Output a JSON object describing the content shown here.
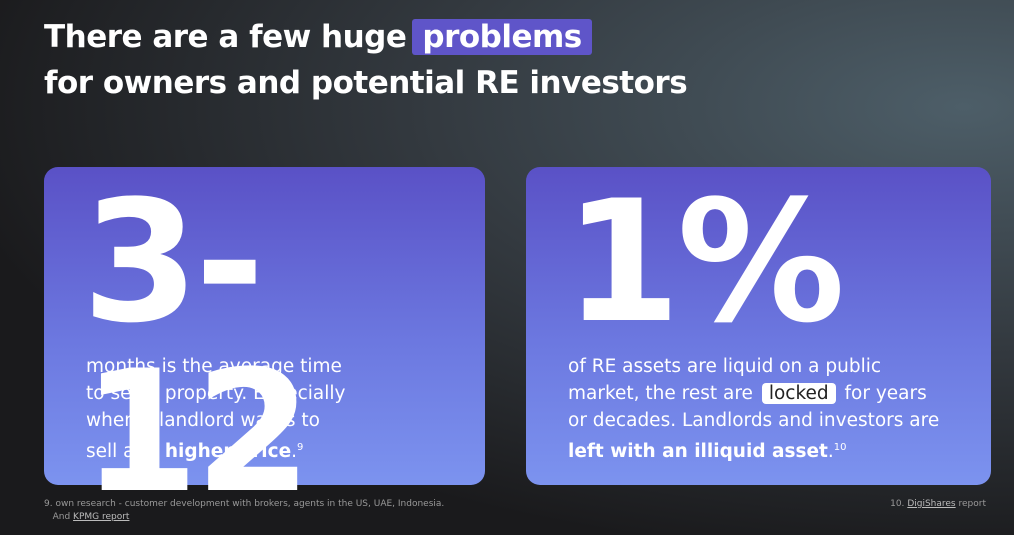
{
  "title": {
    "line1": "There are a few huge",
    "highlight": "problems",
    "line2": "for owners and potential RE investors"
  },
  "cards": [
    {
      "big": "3-12",
      "parts": [
        "months is the average time to sell a property. Especially when a landlord wants to sell at a ",
        "higher price",
        "."
      ],
      "footnote_ref": "9"
    },
    {
      "big": "1%",
      "parts": [
        "of RE assets are liquid on a public market, the rest are",
        "locked",
        "for years or decades. Landlords and investors are",
        "left with an illiquid asset",
        "."
      ],
      "footnote_ref": "10"
    }
  ],
  "footnotes": {
    "left": {
      "text": "9. own research - customer development with brokers, agents in the US, UAE, Indonesia.",
      "and": "And",
      "link": "KPMG report"
    },
    "right": {
      "number": "10.",
      "link": "DigiShares",
      "suffix": "report"
    }
  }
}
